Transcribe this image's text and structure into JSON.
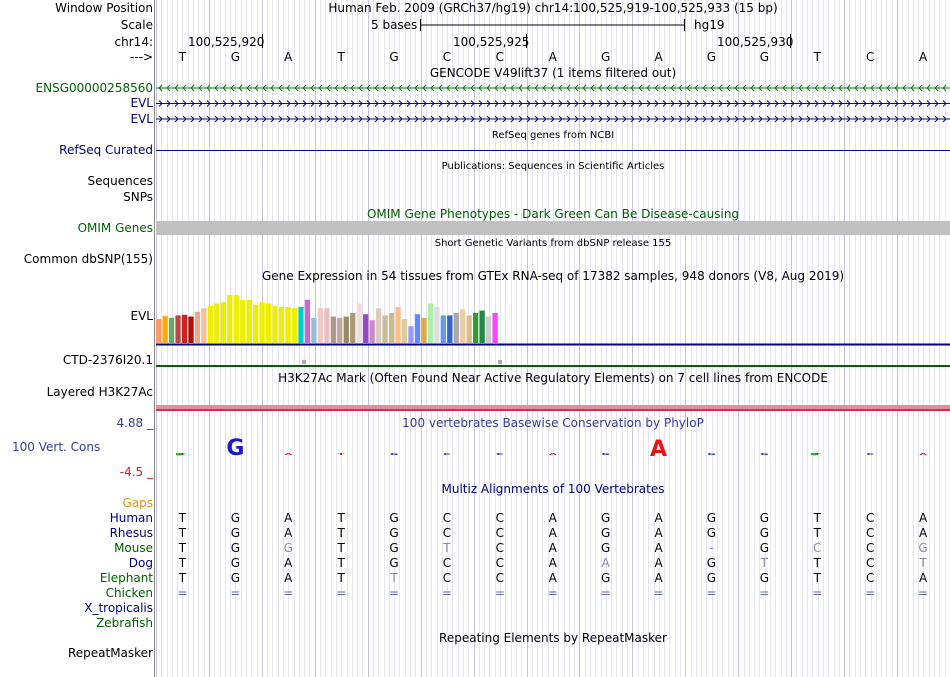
{
  "header": {
    "window_position_label": "Window Position",
    "position_text": "Human Feb. 2009 (GRCh37/hg19)    chr14:100,525,919-100,525,933 (15 bp)",
    "scale_label": "Scale",
    "scale_text": "5 bases",
    "assembly": "hg19",
    "chrom_label": "chr14:",
    "coords": [
      "100,525,920",
      "100,525,925",
      "100,525,930"
    ],
    "strand_label": "--->",
    "bases": [
      "T",
      "G",
      "A",
      "T",
      "G",
      "C",
      "C",
      "A",
      "G",
      "A",
      "G",
      "G",
      "T",
      "C",
      "A"
    ]
  },
  "tracks": {
    "gencode": {
      "title": "GENCODE V49lift37 (1 items filtered out)",
      "items": [
        {
          "label": "ENSG00000258560",
          "strand": "-",
          "color": "#0c7a0c"
        },
        {
          "label": "EVL",
          "strand": "+",
          "color": "#0c0c78"
        },
        {
          "label": "EVL",
          "strand": "+",
          "color": "#0c0c78"
        }
      ]
    },
    "refseq": {
      "title": "RefSeq genes from NCBI",
      "label": "RefSeq Curated"
    },
    "publications": {
      "title": "Publications: Sequences in Scientific Articles",
      "labels": [
        "Sequences",
        "SNPs"
      ]
    },
    "omim": {
      "title": "OMIM Gene Phenotypes - Dark Green Can Be Disease-causing",
      "label": "OMIM Genes"
    },
    "dbsnp": {
      "title": "Short Genetic Variants from dbSNP release 155",
      "label": "Common dbSNP(155)"
    },
    "gtex": {
      "title": "Gene Expression in 54 tissues from GTEx RNA-seq of 17382 samples, 948 donors (V8, Aug 2019)",
      "labels": [
        "EVL",
        "CTD-2376I20.1"
      ],
      "bars": [
        {
          "v": 0.4,
          "c": "#ff9966"
        },
        {
          "v": 0.45,
          "c": "#ffaa00"
        },
        {
          "v": 0.42,
          "c": "#66aa66"
        },
        {
          "v": 0.46,
          "c": "#bb4444"
        },
        {
          "v": 0.47,
          "c": "#cc2222"
        },
        {
          "v": 0.44,
          "c": "#aa1111"
        },
        {
          "v": 0.52,
          "c": "#eeaa88"
        },
        {
          "v": 0.58,
          "c": "#f0c0a0"
        },
        {
          "v": 0.62,
          "c": "#eeee00"
        },
        {
          "v": 0.66,
          "c": "#eeee00"
        },
        {
          "v": 0.68,
          "c": "#eeee00"
        },
        {
          "v": 0.8,
          "c": "#eeee00"
        },
        {
          "v": 0.8,
          "c": "#eeee00"
        },
        {
          "v": 0.72,
          "c": "#eeee00"
        },
        {
          "v": 0.72,
          "c": "#eeee00"
        },
        {
          "v": 0.64,
          "c": "#eeee00"
        },
        {
          "v": 0.68,
          "c": "#eeee00"
        },
        {
          "v": 0.66,
          "c": "#eeee00"
        },
        {
          "v": 0.62,
          "c": "#eeee00"
        },
        {
          "v": 0.6,
          "c": "#eeee00"
        },
        {
          "v": 0.6,
          "c": "#eeee00"
        },
        {
          "v": 0.58,
          "c": "#eeee00"
        },
        {
          "v": 0.6,
          "c": "#00cccc"
        },
        {
          "v": 0.72,
          "c": "#cc66cc"
        },
        {
          "v": 0.42,
          "c": "#99bbdd"
        },
        {
          "v": 0.58,
          "c": "#f0c8c8"
        },
        {
          "v": 0.58,
          "c": "#e8c0c0"
        },
        {
          "v": 0.44,
          "c": "#aa9988"
        },
        {
          "v": 0.42,
          "c": "#bbaa99"
        },
        {
          "v": 0.44,
          "c": "#998866"
        },
        {
          "v": 0.5,
          "c": "#aa9977"
        },
        {
          "v": 0.66,
          "c": "#eedddd"
        },
        {
          "v": 0.48,
          "c": "#9944cc"
        },
        {
          "v": 0.38,
          "c": "#cc88cc"
        },
        {
          "v": 0.58,
          "c": "#ddccbb"
        },
        {
          "v": 0.46,
          "c": "#ccbb99"
        },
        {
          "v": 0.5,
          "c": "#ccbb88"
        },
        {
          "v": 0.6,
          "c": "#ffbb88"
        },
        {
          "v": 0.4,
          "c": "#ddcc99"
        },
        {
          "v": 0.28,
          "c": "#9999ff"
        },
        {
          "v": 0.48,
          "c": "#6688ff"
        },
        {
          "v": 0.42,
          "c": "#ddaa44"
        },
        {
          "v": 0.66,
          "c": "#aaeeaa"
        },
        {
          "v": 0.6,
          "c": "#dddddd"
        },
        {
          "v": 0.46,
          "c": "#6699ee"
        },
        {
          "v": 0.46,
          "c": "#3366cc"
        },
        {
          "v": 0.5,
          "c": "#aaaaaa"
        },
        {
          "v": 0.56,
          "c": "#eeccaa"
        },
        {
          "v": 0.46,
          "c": "#ddbb88"
        },
        {
          "v": 0.5,
          "c": "#339933"
        },
        {
          "v": 0.54,
          "c": "#228844"
        },
        {
          "v": 0.44,
          "c": "#cccccc"
        },
        {
          "v": 0.5,
          "c": "#ff44ff"
        }
      ]
    },
    "h3k27ac": {
      "title": "H3K27Ac Mark (Often Found Near Active Regulatory Elements) on 7 cell lines from ENCODE",
      "label": "Layered H3K27Ac"
    },
    "phylop": {
      "title": "100 vertebrates Basewise Conservation by PhyloP",
      "label": "100 Vert. Cons",
      "max": "4.88 _",
      "min": "-4.5 _"
    },
    "multiz": {
      "title": "Multiz Alignments of 100 Vertebrates",
      "gaps_label": "Gaps",
      "species": [
        {
          "name": "Human",
          "seq": [
            "T",
            "G",
            "A",
            "T",
            "G",
            "C",
            "C",
            "A",
            "G",
            "A",
            "G",
            "G",
            "T",
            "C",
            "A"
          ],
          "dim": []
        },
        {
          "name": "Rhesus",
          "seq": [
            "T",
            "G",
            "A",
            "T",
            "G",
            "C",
            "C",
            "A",
            "G",
            "A",
            "G",
            "G",
            "T",
            "C",
            "A"
          ],
          "dim": []
        },
        {
          "name": "Mouse",
          "seq": [
            "T",
            "G",
            "G",
            "T",
            "G",
            "T",
            "C",
            "A",
            "G",
            "A",
            "-",
            "G",
            "C",
            "C",
            "G"
          ],
          "dim": [
            2,
            5,
            10,
            12,
            14
          ]
        },
        {
          "name": "Dog",
          "seq": [
            "T",
            "G",
            "A",
            "T",
            "G",
            "C",
            "C",
            "A",
            "A",
            "A",
            "G",
            "T",
            "T",
            "C",
            "T"
          ],
          "dim": [
            8,
            11,
            14
          ]
        },
        {
          "name": "Elephant",
          "seq": [
            "T",
            "G",
            "A",
            "T",
            "T",
            "C",
            "C",
            "A",
            "G",
            "A",
            "G",
            "G",
            "T",
            "C",
            "A"
          ],
          "dim": [
            4
          ]
        },
        {
          "name": "Chicken",
          "seq": [
            "=",
            "=",
            "=",
            "=",
            "=",
            "=",
            "=",
            "=",
            "=",
            "=",
            "=",
            "=",
            "=",
            "=",
            "="
          ],
          "dim": []
        },
        {
          "name": "X_tropicalis",
          "seq": [],
          "dim": []
        },
        {
          "name": "Zebrafish",
          "seq": [],
          "dim": []
        }
      ]
    },
    "repeatmasker": {
      "title": "Repeating Elements by RepeatMasker",
      "label": "RepeatMasker"
    }
  }
}
